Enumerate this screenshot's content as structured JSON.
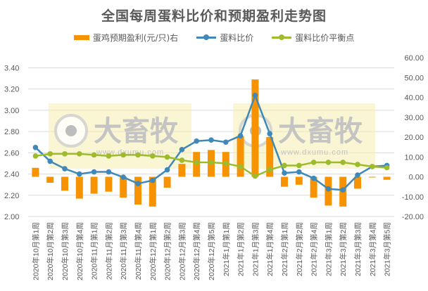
{
  "title": "全国每周蛋料比价和预期盈利走势图",
  "legend": [
    {
      "label": "蛋鸡预期盈利(元/只)右",
      "type": "bar",
      "color": "#f79200"
    },
    {
      "label": "蛋料比价",
      "type": "line",
      "color": "#3f88b8"
    },
    {
      "label": "蛋料比价平衡点",
      "type": "line",
      "color": "#9dbb2c"
    }
  ],
  "watermark": {
    "brand": "大畜牧",
    "url": "www.dxumu.com"
  },
  "chart_data": {
    "type": "bar+line",
    "title": "全国每周蛋料比价和预期盈利走势图",
    "categories": [
      "2020年10月第1周",
      "2020年10月第2周",
      "2020年10月第3周",
      "2020年10月第4周",
      "2020年11月第1周",
      "2020年11月第2周",
      "2020年11月第3周",
      "2020年11月第4周",
      "2020年12月第1周",
      "2020年12月第2周",
      "2020年12月第3周",
      "2020年12月第4周",
      "2020年12月第5周",
      "2021年1月第1周",
      "2021年1月第2周",
      "2021年1月第3周",
      "2021年1月第4周",
      "2021年2月第1周",
      "2021年2月第2周",
      "2021年2月第4周",
      "2021年3月第1周",
      "2021年3月第2周",
      "2021年3月第3周",
      "2021年3月第4周",
      "2021年3月第5周"
    ],
    "series": [
      {
        "name": "蛋鸡预期盈利(元/只)右",
        "type": "bar",
        "axis": "right",
        "color": "#f79200",
        "values": [
          4.5,
          -3.0,
          -7.0,
          -11.0,
          -8.5,
          -7.5,
          -10.5,
          -14.0,
          -15.0,
          -5.5,
          6.5,
          12.5,
          13.5,
          12.5,
          20.5,
          49.0,
          20.0,
          -5.0,
          -4.0,
          -10.5,
          -14.5,
          -15.0,
          -6.0,
          0.0,
          -1.5
        ]
      },
      {
        "name": "蛋料比价",
        "type": "line",
        "axis": "left",
        "color": "#3f88b8",
        "values": [
          2.65,
          2.52,
          2.45,
          2.4,
          2.42,
          2.42,
          2.37,
          2.31,
          2.34,
          2.44,
          2.63,
          2.71,
          2.72,
          2.7,
          2.76,
          3.14,
          2.78,
          2.41,
          2.42,
          2.36,
          2.26,
          2.25,
          2.39,
          2.47,
          2.48
        ]
      },
      {
        "name": "蛋料比价平衡点",
        "type": "line",
        "axis": "left",
        "color": "#9dbb2c",
        "values": [
          2.57,
          2.59,
          2.59,
          2.59,
          2.58,
          2.57,
          2.58,
          2.58,
          2.57,
          2.56,
          2.53,
          2.51,
          2.51,
          2.5,
          2.47,
          2.38,
          2.44,
          2.48,
          2.48,
          2.51,
          2.51,
          2.51,
          2.49,
          2.47,
          2.46
        ]
      }
    ],
    "y_left": {
      "ticks": [
        "3.40",
        "3.20",
        "3.00",
        "2.80",
        "2.60",
        "2.40",
        "2.20",
        "2.00"
      ],
      "ylim": [
        2.0,
        3.4
      ]
    },
    "y_right": {
      "ticks": [
        "60.00",
        "50.00",
        "40.00",
        "30.00",
        "20.00",
        "10.00",
        "0.00",
        "-10.00",
        "-20.00"
      ],
      "ylim": [
        -20,
        60
      ]
    },
    "grid": true,
    "legend_position": "top"
  }
}
